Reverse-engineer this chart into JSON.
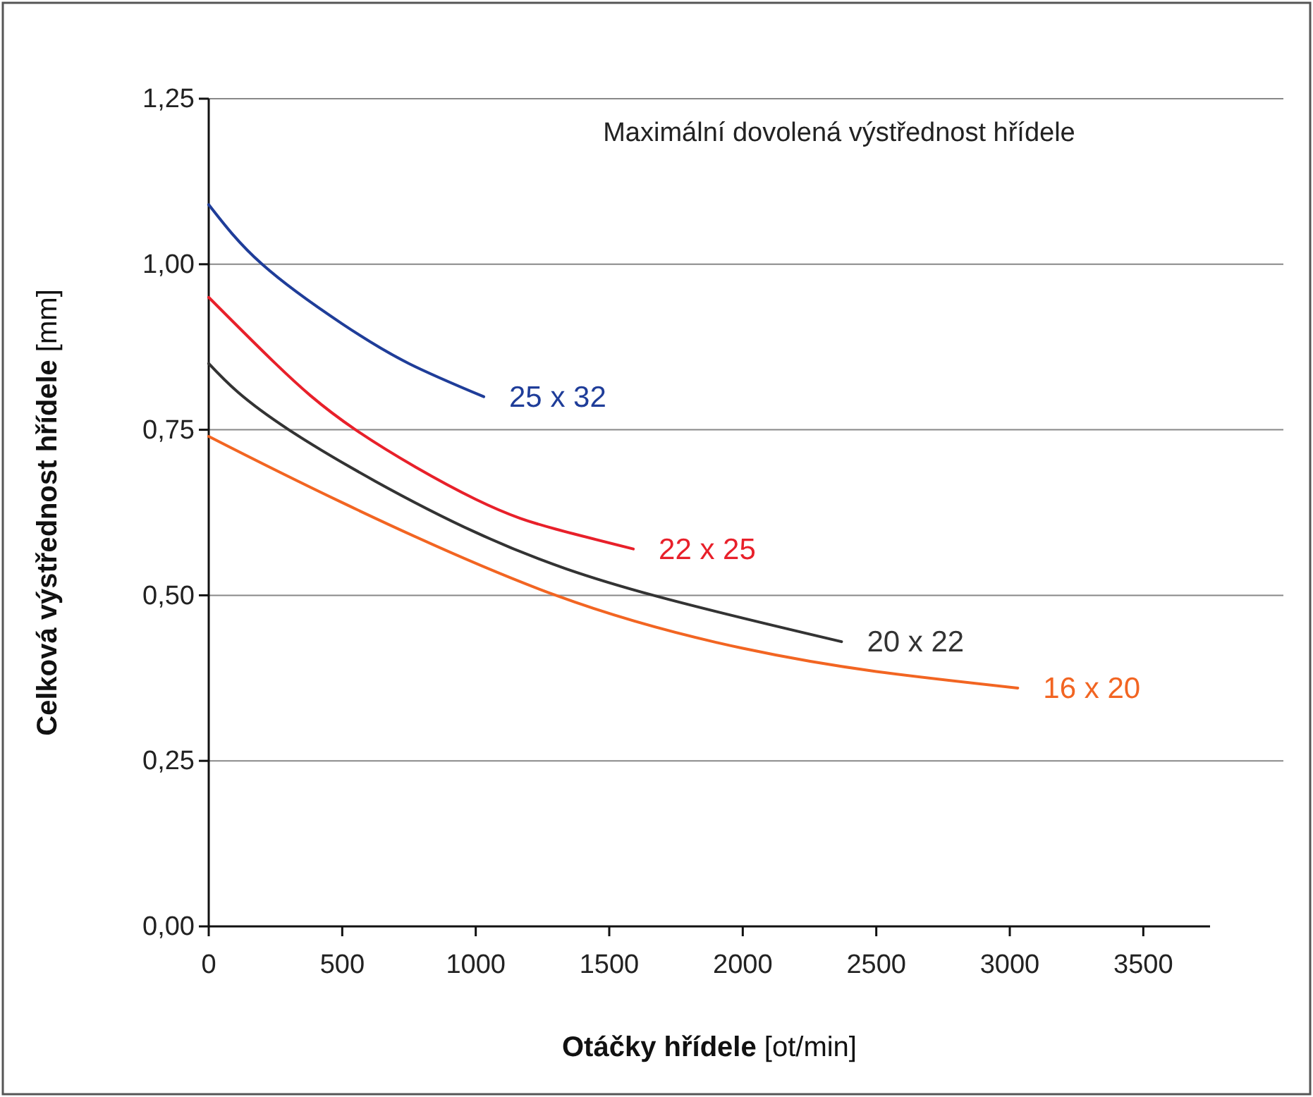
{
  "chart_data": {
    "type": "line",
    "title": "Maximální dovolená výstřednost hřídele",
    "xlabel": "Otáčky hřídele [ot/min]",
    "ylabel": "Celková výstřednost hřídele [mm]",
    "xlim": [
      0,
      3750
    ],
    "xticks": [
      0,
      500,
      1000,
      1500,
      2000,
      2500,
      3000,
      3500
    ],
    "ylim": [
      0,
      1.25
    ],
    "yticks": [
      {
        "value": 0,
        "label": "0,00"
      },
      {
        "value": 0.25,
        "label": "0,25"
      },
      {
        "value": 0.5,
        "label": "0,50"
      },
      {
        "value": 0.75,
        "label": "0,75"
      },
      {
        "value": 1,
        "label": "1,00"
      },
      {
        "value": 1.25,
        "label": "1,25"
      }
    ],
    "grid": "y",
    "marker": "none",
    "line_style": "solid",
    "series": [
      {
        "name": "25 x 32",
        "color": "#1f3d99",
        "x": [
          0,
          200,
          500,
          750,
          1030
        ],
        "values": [
          1.09,
          1.0,
          0.91,
          0.85,
          0.8
        ]
      },
      {
        "name": "22 x 25",
        "color": "#e8202a",
        "x": [
          0,
          250,
          550,
          1000,
          1300,
          1590
        ],
        "values": [
          0.95,
          0.85,
          0.75,
          0.645,
          0.6,
          0.57
        ]
      },
      {
        "name": "20 x 22",
        "color": "#333333",
        "x": [
          0,
          300,
          1000,
          1665,
          2370
        ],
        "values": [
          0.85,
          0.75,
          0.595,
          0.5,
          0.43
        ]
      },
      {
        "name": "16 x 20",
        "color": "#f26522",
        "x": [
          0,
          500,
          1300,
          2000,
          2500,
          3030
        ],
        "values": [
          0.74,
          0.64,
          0.5,
          0.42,
          0.385,
          0.36
        ]
      }
    ]
  }
}
